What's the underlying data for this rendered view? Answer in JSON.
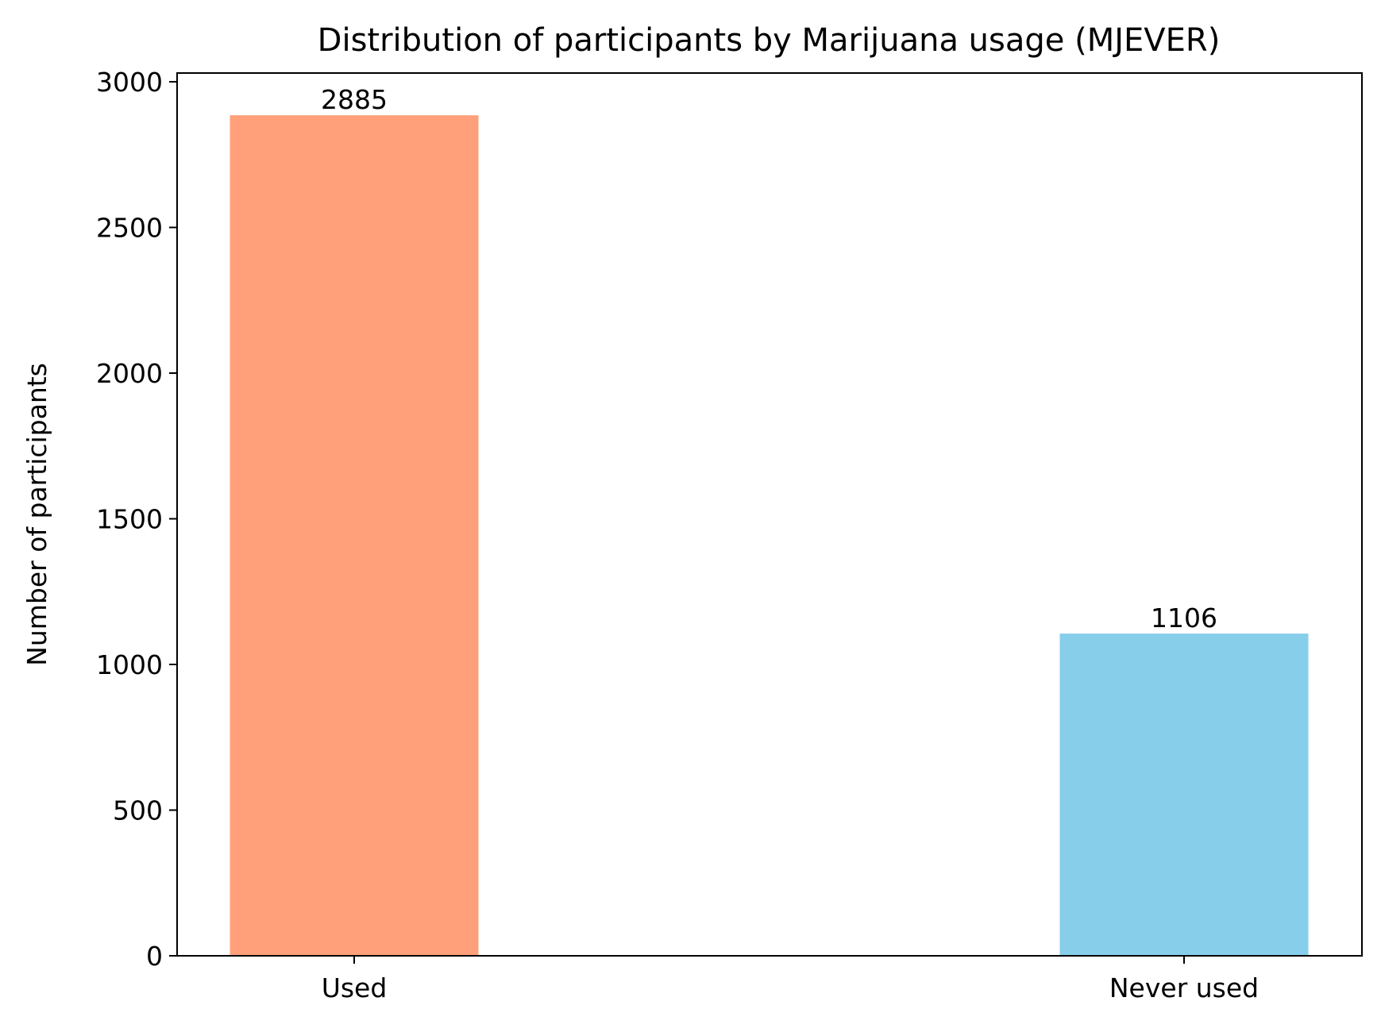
{
  "chart_data": {
    "type": "bar",
    "title": "Distribution of participants by Marijuana usage (MJEVER)",
    "xlabel": "",
    "ylabel": "Number of participants",
    "categories": [
      "Used",
      "Never used"
    ],
    "values": [
      2885,
      1106
    ],
    "colors": [
      "#FFA07A",
      "#87CEEB"
    ],
    "ylim": [
      0,
      3030
    ],
    "yticks": [
      0,
      500,
      1000,
      1500,
      2000,
      2500,
      3000
    ],
    "data_labels": [
      "2885",
      "1106"
    ],
    "grid": false,
    "legend": "none"
  }
}
